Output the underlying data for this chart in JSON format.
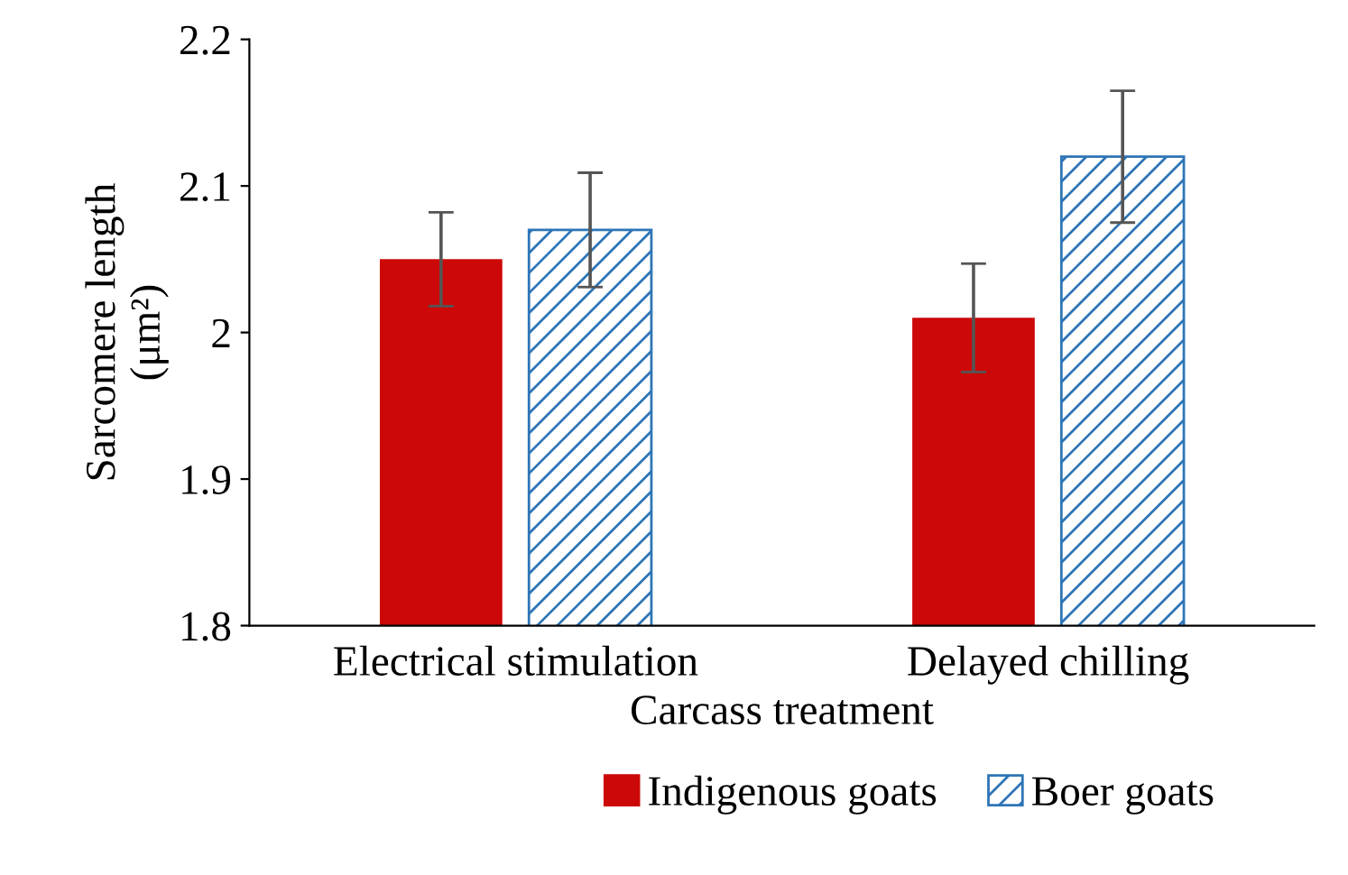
{
  "chart_data": {
    "type": "bar",
    "xlabel": "Carcass treatment",
    "ylabel": "Sarcomere length\n(μm²)",
    "categories": [
      "Electrical stimulation",
      "Delayed chilling"
    ],
    "series": [
      {
        "name": "Indigenous goats",
        "color": "#cc0808",
        "values": [
          2.05,
          2.01
        ],
        "errors": [
          0.032,
          0.037
        ]
      },
      {
        "name": "Boer goats",
        "color": "#2e75b6",
        "values": [
          2.07,
          2.12
        ],
        "errors": [
          0.039,
          0.045
        ]
      }
    ],
    "ylim": [
      1.8,
      2.2
    ],
    "yticks": [
      1.8,
      1.9,
      2,
      2.1,
      2.2
    ],
    "grid": false,
    "legend": "bottom"
  }
}
